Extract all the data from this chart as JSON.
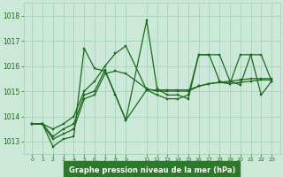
{
  "bg_color": "#cce8d8",
  "grid_color": "#9ecfb2",
  "line_color": "#1a6b1a",
  "xlabel": "Graphe pression niveau de la mer (hPa)",
  "xlabel_bg": "#2a7a2a",
  "ylim": [
    1012.5,
    1018.5
  ],
  "yticks": [
    1013,
    1014,
    1015,
    1016,
    1017,
    1018
  ],
  "hours": [
    0,
    1,
    2,
    3,
    4,
    5,
    6,
    7,
    8,
    9,
    11,
    12,
    13,
    14,
    15,
    16,
    17,
    18,
    19,
    20,
    21,
    22,
    23
  ],
  "series": [
    [
      1013.7,
      1013.7,
      1012.8,
      1013.1,
      1013.2,
      1016.7,
      1015.9,
      1015.8,
      1014.85,
      1013.85,
      1017.8,
      1015.1,
      1014.85,
      1014.85,
      1014.7,
      1016.45,
      1016.45,
      1016.45,
      1015.4,
      1015.25,
      1016.45,
      1016.45,
      1015.4
    ],
    [
      1013.7,
      1013.7,
      1013.1,
      1013.3,
      1013.5,
      1014.7,
      1014.85,
      1015.7,
      1015.8,
      1015.7,
      1015.1,
      1015.0,
      1015.0,
      1015.0,
      1015.0,
      1015.2,
      1015.3,
      1015.35,
      1015.3,
      1015.35,
      1015.4,
      1015.45,
      1015.45
    ],
    [
      1013.7,
      1013.7,
      1013.2,
      1013.5,
      1013.7,
      1014.85,
      1015.0,
      1015.85,
      1014.85,
      1013.85,
      1015.05,
      1015.05,
      1015.05,
      1015.05,
      1015.05,
      1015.2,
      1015.3,
      1015.35,
      1015.4,
      1015.45,
      1015.5,
      1015.5,
      1015.5
    ],
    [
      1013.7,
      1013.7,
      1013.5,
      1013.7,
      1014.0,
      1015.0,
      1015.4,
      1016.0,
      1016.5,
      1016.8,
      1015.05,
      1014.85,
      1014.7,
      1014.7,
      1014.85,
      1016.45,
      1016.45,
      1015.4,
      1015.3,
      1016.45,
      1016.45,
      1014.85,
      1015.4
    ]
  ]
}
